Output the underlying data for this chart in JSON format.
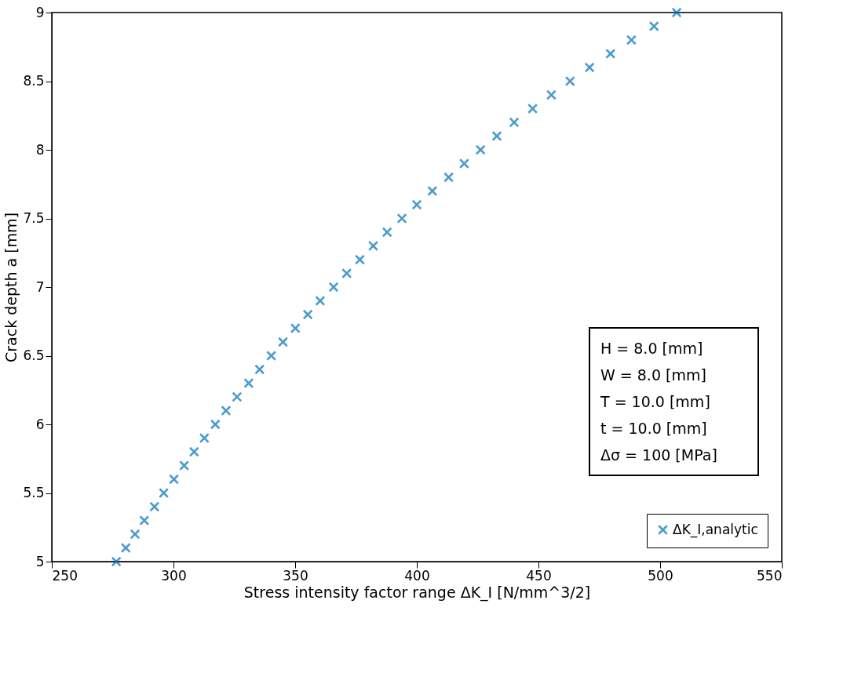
{
  "chart_data": {
    "type": "scatter",
    "xlabel": "Stress intensity factor range ΔK_I [N/mm^3/2]",
    "ylabel": "Crack depth a [mm]",
    "x": [
      276.5,
      280.4,
      284.2,
      288.0,
      292.2,
      296.0,
      300.2,
      304.4,
      308.5,
      312.7,
      317.2,
      321.6,
      326.1,
      330.9,
      335.4,
      340.2,
      345.0,
      350.1,
      355.2,
      360.3,
      365.8,
      371.2,
      376.6,
      382.1,
      387.8,
      393.9,
      400.0,
      406.4,
      413.1,
      419.5,
      426.2,
      432.9,
      440.0,
      447.6,
      455.3,
      463.0,
      471.0,
      479.6,
      488.2,
      497.5,
      506.8
    ],
    "series": [
      {
        "name": "ΔK_I,analytic",
        "color": "#0072bd",
        "values": [
          5.0,
          5.1,
          5.2,
          5.3,
          5.4,
          5.5,
          5.6,
          5.7,
          5.8,
          5.9,
          6.0,
          6.1,
          6.2,
          6.3,
          6.4,
          6.5,
          6.6,
          6.7,
          6.8,
          6.9,
          7.0,
          7.1,
          7.2,
          7.3,
          7.4,
          7.5,
          7.6,
          7.7,
          7.8,
          7.9,
          8.0,
          8.1,
          8.2,
          8.3,
          8.4,
          8.5,
          8.6,
          8.7,
          8.8,
          8.9,
          9.0
        ]
      }
    ],
    "xlim": [
      250,
      550
    ],
    "xticks": [
      250,
      300,
      350,
      400,
      450,
      500,
      550
    ],
    "ylim": [
      5,
      9
    ],
    "yticks": [
      5,
      5.5,
      6,
      6.5,
      7,
      7.5,
      8,
      8.5,
      9
    ],
    "annotations": [
      "H = 8.0 [mm]",
      "W = 8.0 [mm]",
      "T = 10.0 [mm]",
      "t = 10.0 [mm]",
      "Δσ = 100 [MPa]"
    ],
    "marker": "cross",
    "grid": false,
    "legend": "bottom right"
  }
}
